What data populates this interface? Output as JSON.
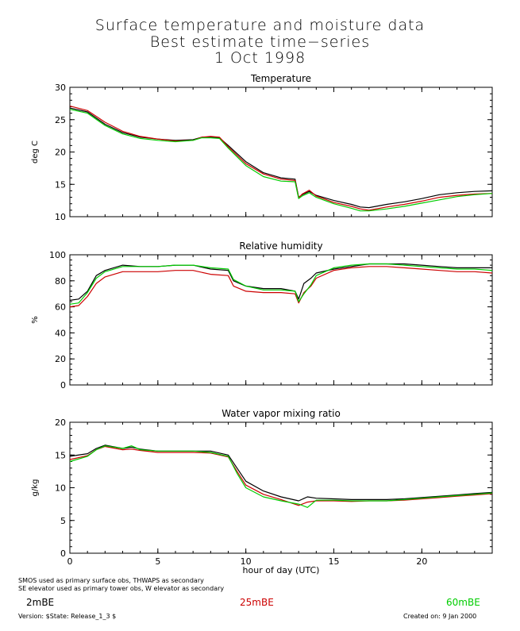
{
  "header": {
    "title_line1": "Surface temperature and moisture data",
    "title_line2": "Best estimate time−series",
    "title_line3": "1 Oct 1998"
  },
  "colors": {
    "black": "#000000",
    "red": "#cc0000",
    "green": "#00cc00"
  },
  "chart_data": [
    {
      "type": "line",
      "title": "Temperature",
      "xlabel": "",
      "ylabel": "deg C",
      "xlim": [
        0,
        24
      ],
      "ylim": [
        10,
        30
      ],
      "yticks": [
        10,
        15,
        20,
        25,
        30
      ],
      "xticks": [
        0,
        5,
        10,
        15,
        20
      ],
      "show_xtick_labels": false,
      "series": [
        {
          "name": "2mBE",
          "color": "#000000",
          "x": [
            0,
            1,
            2,
            3,
            4,
            5,
            6,
            7,
            7.5,
            8,
            8.5,
            9,
            10,
            11,
            12,
            12.8,
            13,
            13.2,
            13.6,
            14,
            15,
            16,
            16.5,
            17,
            18,
            19,
            20,
            21,
            22,
            23,
            24
          ],
          "y": [
            26.8,
            26.2,
            24.3,
            23.0,
            22.3,
            22.0,
            21.8,
            21.9,
            22.3,
            22.3,
            22.2,
            21.0,
            18.5,
            16.8,
            16.0,
            15.8,
            13.0,
            13.4,
            13.9,
            13.3,
            12.5,
            11.9,
            11.5,
            11.4,
            11.9,
            12.3,
            12.8,
            13.4,
            13.7,
            13.9,
            14.0
          ]
        },
        {
          "name": "25mBE",
          "color": "#cc0000",
          "x": [
            0,
            1,
            2,
            3,
            4,
            5,
            6,
            7,
            7.5,
            8,
            8.5,
            9,
            10,
            11,
            12,
            12.8,
            13,
            13.2,
            13.6,
            14,
            15,
            16,
            16.5,
            17,
            18,
            19,
            20,
            21,
            22,
            23,
            24
          ],
          "y": [
            27.1,
            26.4,
            24.6,
            23.2,
            22.4,
            22.0,
            21.7,
            21.8,
            22.3,
            22.4,
            22.3,
            20.8,
            18.2,
            16.6,
            15.8,
            15.6,
            12.9,
            13.5,
            14.1,
            13.2,
            12.2,
            11.6,
            11.2,
            11.0,
            11.5,
            11.9,
            12.4,
            13.0,
            13.3,
            13.5,
            13.6
          ]
        },
        {
          "name": "60mBE",
          "color": "#00cc00",
          "x": [
            0,
            1,
            2,
            3,
            4,
            5,
            6,
            7,
            7.5,
            8,
            8.5,
            9,
            10,
            11,
            12,
            12.8,
            13,
            13.2,
            13.6,
            14,
            15,
            16,
            16.5,
            17,
            18,
            19,
            20,
            21,
            22,
            23,
            24
          ],
          "y": [
            26.6,
            26.0,
            24.1,
            22.8,
            22.1,
            21.8,
            21.6,
            21.8,
            22.2,
            22.2,
            22.1,
            20.6,
            17.9,
            16.2,
            15.5,
            15.4,
            12.8,
            13.2,
            13.7,
            13.0,
            12.0,
            11.3,
            10.9,
            10.9,
            11.2,
            11.6,
            12.1,
            12.6,
            13.1,
            13.4,
            13.6
          ]
        }
      ]
    },
    {
      "type": "line",
      "title": "Relative humidity",
      "xlabel": "",
      "ylabel": "%",
      "xlim": [
        0,
        24
      ],
      "ylim": [
        0,
        100
      ],
      "yticks": [
        0,
        20,
        40,
        60,
        80,
        100
      ],
      "xticks": [
        0,
        5,
        10,
        15,
        20
      ],
      "show_xtick_labels": false,
      "series": [
        {
          "name": "2mBE",
          "color": "#000000",
          "x": [
            0,
            0.5,
            1,
            1.5,
            2,
            3,
            4,
            5,
            6,
            7,
            8,
            9,
            9.3,
            10,
            11,
            12,
            12.8,
            13,
            13.3,
            13.7,
            14,
            15,
            16,
            17,
            18,
            19,
            20,
            21,
            22,
            23,
            24
          ],
          "y": [
            65,
            66,
            72,
            84,
            88,
            92,
            91,
            91,
            92,
            92,
            89,
            88,
            80,
            76,
            74,
            74,
            72,
            66,
            78,
            82,
            86,
            89,
            91,
            93,
            93,
            93,
            92,
            91,
            90,
            90,
            90
          ]
        },
        {
          "name": "25mBE",
          "color": "#cc0000",
          "x": [
            0,
            0.5,
            1,
            1.5,
            2,
            3,
            4,
            5,
            6,
            7,
            8,
            9,
            9.3,
            10,
            11,
            12,
            12.8,
            13,
            13.3,
            13.7,
            14,
            15,
            16,
            17,
            18,
            19,
            20,
            21,
            22,
            23,
            24
          ],
          "y": [
            60,
            61,
            68,
            78,
            83,
            87,
            87,
            87,
            88,
            88,
            85,
            84,
            76,
            72,
            71,
            71,
            70,
            63,
            71,
            76,
            82,
            88,
            90,
            91,
            91,
            90,
            89,
            88,
            87,
            87,
            86
          ]
        },
        {
          "name": "60mBE",
          "color": "#00cc00",
          "x": [
            0,
            0.5,
            1,
            1.5,
            2,
            3,
            4,
            5,
            6,
            7,
            8,
            9,
            9.3,
            10,
            11,
            12,
            12.8,
            13,
            13.3,
            13.7,
            14,
            15,
            16,
            17,
            18,
            19,
            20,
            21,
            22,
            23,
            24
          ],
          "y": [
            62,
            63,
            71,
            82,
            87,
            91,
            91,
            91,
            92,
            92,
            90,
            89,
            81,
            76,
            73,
            73,
            72,
            64,
            70,
            77,
            84,
            90,
            92,
            93,
            93,
            92,
            91,
            90,
            89,
            89,
            88
          ]
        }
      ]
    },
    {
      "type": "line",
      "title": "Water vapor mixing ratio",
      "xlabel": "hour of day (UTC)",
      "ylabel": "g/kg",
      "xlim": [
        0,
        24
      ],
      "ylim": [
        0,
        20
      ],
      "yticks": [
        0,
        5,
        10,
        15,
        20
      ],
      "xticks": [
        0,
        5,
        10,
        15,
        20
      ],
      "show_xtick_labels": true,
      "series": [
        {
          "name": "2mBE",
          "color": "#000000",
          "x": [
            0,
            1,
            1.5,
            2,
            3,
            3.5,
            4,
            5,
            6,
            7,
            8,
            9,
            9.5,
            10,
            11,
            12,
            13,
            13.5,
            14,
            15,
            16,
            17,
            18,
            19,
            20,
            21,
            22,
            23,
            24
          ],
          "y": [
            14.8,
            15.2,
            16.0,
            16.5,
            16.0,
            16.2,
            15.9,
            15.6,
            15.6,
            15.6,
            15.6,
            15.0,
            13.0,
            11.0,
            9.5,
            8.6,
            8.0,
            8.6,
            8.4,
            8.3,
            8.2,
            8.2,
            8.2,
            8.3,
            8.5,
            8.7,
            8.9,
            9.1,
            9.3
          ]
        },
        {
          "name": "25mBE",
          "color": "#cc0000",
          "x": [
            0,
            1,
            1.5,
            2,
            3,
            3.5,
            4,
            5,
            6,
            7,
            8,
            9,
            9.5,
            10,
            11,
            12,
            13,
            13.5,
            14,
            15,
            16,
            17,
            18,
            19,
            20,
            21,
            22,
            23,
            24
          ],
          "y": [
            14.3,
            14.9,
            15.8,
            16.3,
            15.8,
            15.9,
            15.7,
            15.4,
            15.4,
            15.4,
            15.3,
            14.7,
            12.5,
            10.4,
            9.0,
            8.2,
            7.3,
            7.8,
            8.0,
            8.0,
            7.9,
            8.0,
            8.0,
            8.1,
            8.3,
            8.5,
            8.7,
            8.9,
            9.1
          ]
        },
        {
          "name": "60mBE",
          "color": "#00cc00",
          "x": [
            0,
            1,
            1.5,
            2,
            3,
            3.5,
            4,
            5,
            6,
            7,
            8,
            9,
            9.5,
            10,
            11,
            12,
            13,
            13.5,
            14,
            15,
            16,
            17,
            18,
            19,
            20,
            21,
            22,
            23,
            24
          ],
          "y": [
            14.0,
            14.8,
            15.8,
            16.4,
            16.0,
            16.4,
            15.8,
            15.6,
            15.6,
            15.6,
            15.4,
            14.8,
            12.2,
            10.0,
            8.6,
            8.0,
            7.5,
            7.0,
            8.1,
            8.1,
            8.0,
            8.0,
            8.0,
            8.2,
            8.4,
            8.6,
            8.8,
            9.0,
            9.2
          ]
        }
      ]
    }
  ],
  "footer": {
    "note1": "SMOS used as primary surface obs, THWAPS as secondary",
    "note2": "SE elevator used as primary tower obs, W elevator as secondary",
    "legend_2m": "2mBE",
    "legend_25m": "25mBE",
    "legend_60m": "60mBE",
    "version": "Version: $State: Release_1_3 $",
    "created": "Created on:  9 Jan 2000"
  }
}
